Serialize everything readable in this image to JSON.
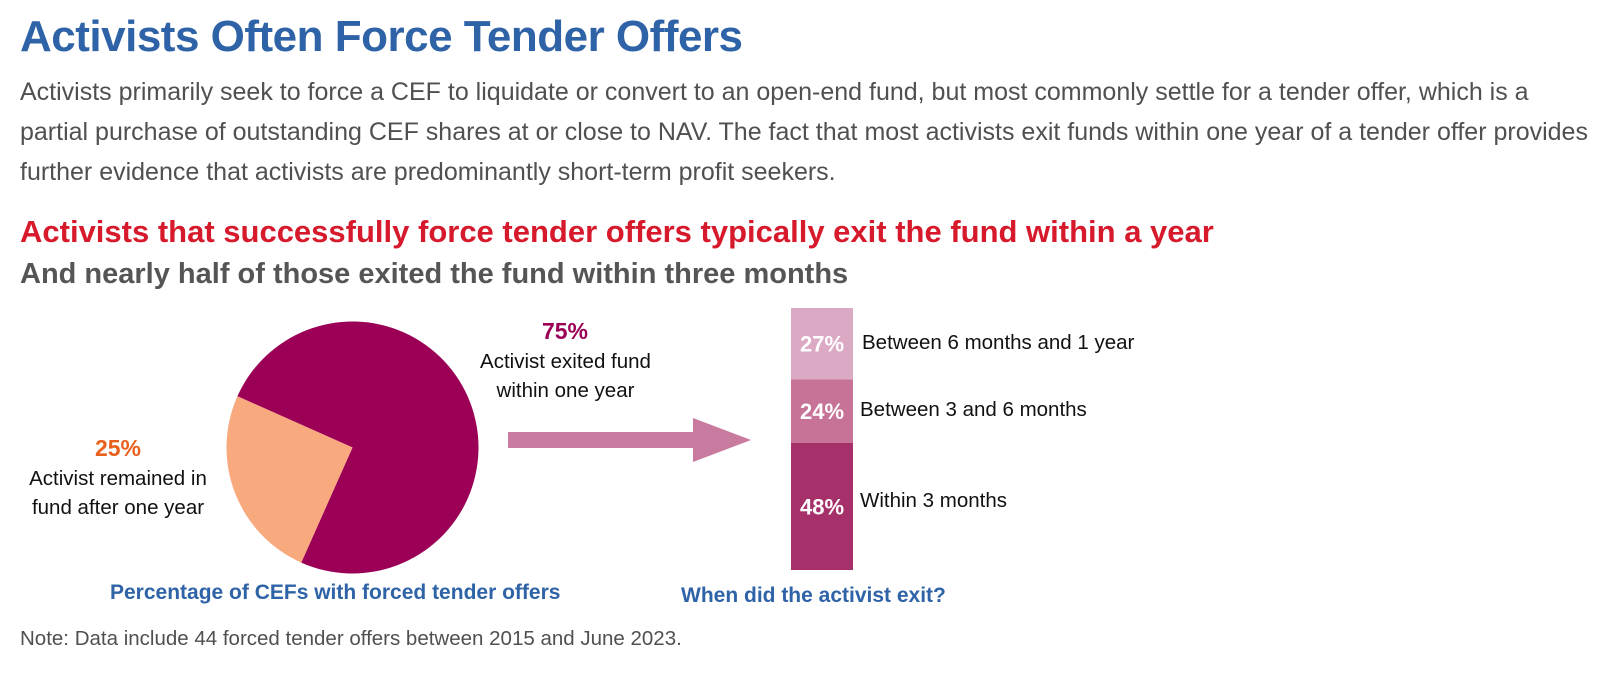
{
  "header": {
    "title": "Activists Often Force Tender Offers",
    "body": "Activists primarily seek to force a CEF to liquidate or convert to an open-end fund, but most commonly settle for a tender offer, which is a partial purchase of outstanding CEF shares at or close to NAV. The fact that most activists exit funds within one year of a tender offer provides further evidence that activists are predominantly short-term profit seekers."
  },
  "headline": "Activists that successfully force tender offers typically exit the fund within a year",
  "subheadline": "And nearly half of those exited the fund within three months",
  "chart_data": [
    {
      "type": "pie",
      "title": "Percentage of CEFs with forced tender offers",
      "slices": [
        {
          "pct_label": "75%",
          "label": "Activist exited fund within one year",
          "value": 75,
          "color": "#9b0056"
        },
        {
          "pct_label": "25%",
          "label": "Activist remained in fund after one year",
          "value": 25,
          "color": "#f8a97e"
        }
      ],
      "label_colors": {
        "exited": "#9b0056",
        "remained": "#e8601c"
      }
    },
    {
      "type": "bar",
      "title": "When did the activist exit?",
      "stacked": true,
      "segments": [
        {
          "pct_label": "48%",
          "label": "Within 3 months",
          "value": 48,
          "color": "#a6306a"
        },
        {
          "pct_label": "24%",
          "label": "Between 3 and 6 months",
          "value": 24,
          "color": "#c77397"
        },
        {
          "pct_label": "27%",
          "label": "Between 6 months and 1 year",
          "value": 27,
          "color": "#dca9c4"
        }
      ]
    }
  ],
  "arrow_color": "#c97a9f",
  "note": "Note: Data include 44 forced tender offers between 2015 and June 2023."
}
